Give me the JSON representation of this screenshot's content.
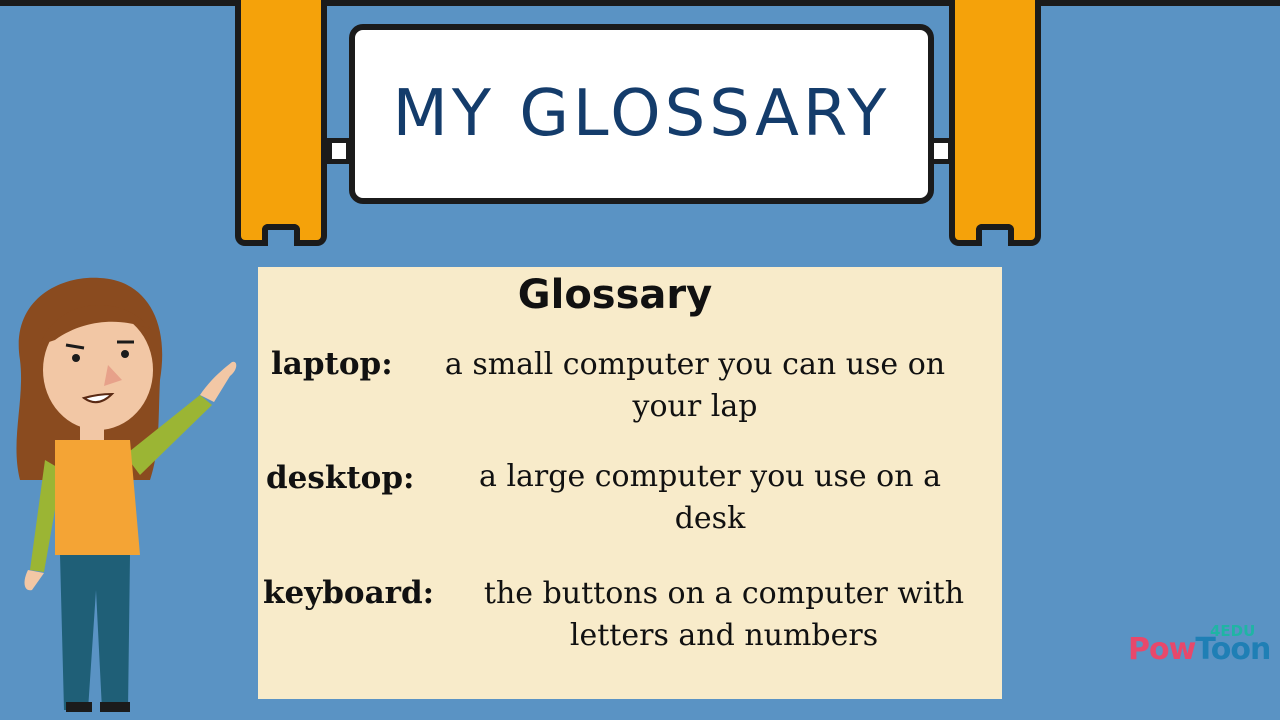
{
  "banner": {
    "title": "MY GLOSSARY"
  },
  "card": {
    "title": "Glossary",
    "entries": [
      {
        "term": "laptop:",
        "definition_line1": "a small computer you can use on",
        "definition_line2": "your lap"
      },
      {
        "term": "desktop:",
        "definition_line1": "a large computer you use on a",
        "definition_line2": "desk"
      },
      {
        "term": "keyboard:",
        "definition_line1": "the buttons on a computer with",
        "definition_line2": "letters and numbers"
      }
    ]
  },
  "logo": {
    "part1": "Pow",
    "part2": "Toon",
    "edu": "4EDU"
  },
  "colors": {
    "background": "#5a93c4",
    "post": "#f5a20a",
    "card": "#f8ebca",
    "title_text": "#143c6b"
  }
}
